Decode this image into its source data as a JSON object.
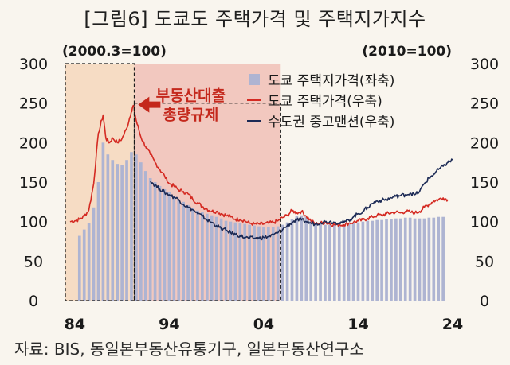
{
  "figure": {
    "title": "[그림6] 도쿄도 주택가격 및 주택지가지수",
    "source": "자료: BIS, 동일본부동산유통기구, 일본부동산연구소"
  },
  "chart_data": {
    "type": "bar+line",
    "left_axis_note": "(2000.3=100)",
    "right_axis_note": "(2010=100)",
    "y_left": {
      "range": [
        0,
        300
      ],
      "ticks": [
        "0",
        "50",
        "100",
        "150",
        "200",
        "250",
        "300"
      ]
    },
    "y_right": {
      "range": [
        0,
        300
      ],
      "ticks": [
        "0",
        "50",
        "100",
        "150",
        "200",
        "250",
        "300"
      ]
    },
    "x": {
      "range": [
        1983,
        2024
      ],
      "ticks": [
        "84",
        "94",
        "04",
        "14",
        "24"
      ],
      "tick_values": [
        1984,
        1994,
        2004,
        2014,
        2024
      ]
    },
    "legend": {
      "placement": "top-right",
      "items": [
        "도쿄 주택지가격(좌축)",
        "도쿄 주택가격(우축)",
        "수도권 중고맨션(우축)"
      ]
    },
    "annotation": {
      "lines": [
        "부동산대출",
        "총량규제"
      ],
      "arrow_points_to": [
        1990.2,
        246
      ]
    },
    "shaded_regions": [
      {
        "from": 1983,
        "to": 1990.3,
        "style": "light-orange"
      },
      {
        "from": 1990.3,
        "to": 2005.8,
        "style": "light-red"
      }
    ],
    "dashed_boxes": [
      {
        "from": 1983,
        "to": 1990.3,
        "ymin": 0,
        "ymax": 300
      },
      {
        "from": 1990.3,
        "to": 2005.8,
        "ymin": 0,
        "ymax": 250
      }
    ],
    "series": [
      {
        "name": "도쿄 주택지가격(좌축)",
        "kind": "bar",
        "axis": "left",
        "color": "#aeb4d2",
        "points": [
          [
            1984.5,
            82
          ],
          [
            1985.0,
            90
          ],
          [
            1985.5,
            98
          ],
          [
            1986.0,
            118
          ],
          [
            1986.5,
            150
          ],
          [
            1987.0,
            200
          ],
          [
            1987.5,
            185
          ],
          [
            1988.0,
            178
          ],
          [
            1988.5,
            173
          ],
          [
            1989.0,
            172
          ],
          [
            1989.5,
            178
          ],
          [
            1990.0,
            188
          ],
          [
            1990.5,
            185
          ],
          [
            1991.0,
            175
          ],
          [
            1991.5,
            164
          ],
          [
            1992.0,
            155
          ],
          [
            1992.5,
            150
          ],
          [
            1993.0,
            145
          ],
          [
            1993.5,
            141
          ],
          [
            1994.0,
            137
          ],
          [
            1994.5,
            132
          ],
          [
            1995.0,
            128
          ],
          [
            1995.5,
            125
          ],
          [
            1996.0,
            121
          ],
          [
            1996.5,
            117
          ],
          [
            1997.0,
            114
          ],
          [
            1997.5,
            112
          ],
          [
            1998.0,
            110
          ],
          [
            1998.5,
            108
          ],
          [
            1999.0,
            106
          ],
          [
            1999.5,
            104
          ],
          [
            2000.0,
            101
          ],
          [
            2000.5,
            100
          ],
          [
            2001.0,
            99
          ],
          [
            2001.5,
            98
          ],
          [
            2002.0,
            97
          ],
          [
            2002.5,
            96
          ],
          [
            2003.0,
            95
          ],
          [
            2003.5,
            94
          ],
          [
            2004.0,
            93
          ],
          [
            2004.5,
            93
          ],
          [
            2005.0,
            93
          ],
          [
            2005.5,
            94
          ],
          [
            2006.0,
            96
          ],
          [
            2006.5,
            99
          ],
          [
            2007.0,
            103
          ],
          [
            2007.5,
            107
          ],
          [
            2008.0,
            108
          ],
          [
            2008.5,
            106
          ],
          [
            2009.0,
            101
          ],
          [
            2009.5,
            98
          ],
          [
            2010.0,
            97
          ],
          [
            2010.5,
            96
          ],
          [
            2011.0,
            96
          ],
          [
            2011.5,
            96
          ],
          [
            2012.0,
            96
          ],
          [
            2012.5,
            96
          ],
          [
            2013.0,
            97
          ],
          [
            2013.5,
            98
          ],
          [
            2014.0,
            99
          ],
          [
            2014.5,
            100
          ],
          [
            2015.0,
            101
          ],
          [
            2015.5,
            101
          ],
          [
            2016.0,
            102
          ],
          [
            2016.5,
            102
          ],
          [
            2017.0,
            103
          ],
          [
            2017.5,
            103
          ],
          [
            2018.0,
            104
          ],
          [
            2018.5,
            104
          ],
          [
            2019.0,
            105
          ],
          [
            2019.5,
            105
          ],
          [
            2020.0,
            104
          ],
          [
            2020.5,
            104
          ],
          [
            2021.0,
            104
          ],
          [
            2021.5,
            105
          ],
          [
            2022.0,
            105
          ],
          [
            2022.5,
            106
          ],
          [
            2023.0,
            106
          ]
        ]
      },
      {
        "name": "도쿄 주택가격(우축)",
        "kind": "line",
        "axis": "right",
        "color": "#d42a22",
        "points": [
          [
            1983.5,
            100
          ],
          [
            1984.0,
            101
          ],
          [
            1984.5,
            103
          ],
          [
            1985.0,
            107
          ],
          [
            1985.5,
            115
          ],
          [
            1986.0,
            148
          ],
          [
            1986.5,
            212
          ],
          [
            1987.0,
            235
          ],
          [
            1987.3,
            205
          ],
          [
            1987.7,
            200
          ],
          [
            1988.0,
            206
          ],
          [
            1988.5,
            200
          ],
          [
            1989.0,
            205
          ],
          [
            1989.5,
            218
          ],
          [
            1990.0,
            240
          ],
          [
            1990.2,
            247
          ],
          [
            1990.5,
            228
          ],
          [
            1991.0,
            207
          ],
          [
            1991.5,
            195
          ],
          [
            1992.0,
            185
          ],
          [
            1992.5,
            175
          ],
          [
            1993.0,
            166
          ],
          [
            1993.5,
            158
          ],
          [
            1994.0,
            148
          ],
          [
            1994.5,
            145
          ],
          [
            1995.0,
            140
          ],
          [
            1995.5,
            138
          ],
          [
            1996.0,
            135
          ],
          [
            1996.5,
            128
          ],
          [
            1997.0,
            124
          ],
          [
            1997.5,
            119
          ],
          [
            1998.0,
            116
          ],
          [
            1998.5,
            113
          ],
          [
            1999.0,
            113
          ],
          [
            1999.5,
            110
          ],
          [
            2000.0,
            108
          ],
          [
            2000.5,
            106
          ],
          [
            2001.0,
            103
          ],
          [
            2001.5,
            103
          ],
          [
            2002.0,
            101
          ],
          [
            2002.5,
            98
          ],
          [
            2003.0,
            97
          ],
          [
            2003.5,
            97
          ],
          [
            2004.0,
            97
          ],
          [
            2004.5,
            98
          ],
          [
            2005.0,
            99
          ],
          [
            2005.5,
            101
          ],
          [
            2006.0,
            105
          ],
          [
            2006.5,
            108
          ],
          [
            2007.0,
            114
          ],
          [
            2007.5,
            111
          ],
          [
            2008.0,
            113
          ],
          [
            2008.5,
            107
          ],
          [
            2009.0,
            101
          ],
          [
            2009.5,
            97
          ],
          [
            2010.0,
            98
          ],
          [
            2010.5,
            99
          ],
          [
            2011.0,
            97
          ],
          [
            2011.5,
            96
          ],
          [
            2012.0,
            96
          ],
          [
            2012.5,
            96
          ],
          [
            2013.0,
            98
          ],
          [
            2013.5,
            99
          ],
          [
            2014.0,
            101
          ],
          [
            2014.5,
            102
          ],
          [
            2015.0,
            104
          ],
          [
            2015.5,
            106
          ],
          [
            2016.0,
            108
          ],
          [
            2016.5,
            108
          ],
          [
            2017.0,
            110
          ],
          [
            2017.5,
            111
          ],
          [
            2018.0,
            112
          ],
          [
            2018.5,
            111
          ],
          [
            2019.0,
            113
          ],
          [
            2019.5,
            112
          ],
          [
            2020.0,
            111
          ],
          [
            2020.5,
            113
          ],
          [
            2021.0,
            118
          ],
          [
            2021.5,
            122
          ],
          [
            2022.0,
            126
          ],
          [
            2022.5,
            128
          ],
          [
            2023.0,
            130
          ],
          [
            2023.5,
            128
          ]
        ]
      },
      {
        "name": "수도권 중고맨션(우축)",
        "kind": "line",
        "axis": "right",
        "color": "#1c2a55",
        "points": [
          [
            1992.0,
            152
          ],
          [
            1992.5,
            146
          ],
          [
            1993.0,
            141
          ],
          [
            1993.5,
            137
          ],
          [
            1994.0,
            134
          ],
          [
            1994.5,
            131
          ],
          [
            1995.0,
            128
          ],
          [
            1995.5,
            122
          ],
          [
            1996.0,
            118
          ],
          [
            1996.5,
            115
          ],
          [
            1997.0,
            110
          ],
          [
            1997.5,
            107
          ],
          [
            1998.0,
            102
          ],
          [
            1998.5,
            99
          ],
          [
            1999.0,
            95
          ],
          [
            1999.5,
            91
          ],
          [
            2000.0,
            89
          ],
          [
            2000.5,
            86
          ],
          [
            2001.0,
            84
          ],
          [
            2001.5,
            82
          ],
          [
            2002.0,
            80
          ],
          [
            2002.5,
            79
          ],
          [
            2003.0,
            79
          ],
          [
            2003.5,
            79
          ],
          [
            2004.0,
            80
          ],
          [
            2004.5,
            81
          ],
          [
            2005.0,
            83
          ],
          [
            2005.5,
            86
          ],
          [
            2006.0,
            90
          ],
          [
            2006.5,
            95
          ],
          [
            2007.0,
            99
          ],
          [
            2007.5,
            102
          ],
          [
            2008.0,
            102
          ],
          [
            2008.5,
            100
          ],
          [
            2009.0,
            98
          ],
          [
            2009.5,
            97
          ],
          [
            2010.0,
            99
          ],
          [
            2010.5,
            100
          ],
          [
            2011.0,
            100
          ],
          [
            2011.5,
            99
          ],
          [
            2012.0,
            99
          ],
          [
            2012.5,
            99
          ],
          [
            2013.0,
            102
          ],
          [
            2013.5,
            106
          ],
          [
            2014.0,
            110
          ],
          [
            2014.5,
            113
          ],
          [
            2015.0,
            118
          ],
          [
            2015.5,
            123
          ],
          [
            2016.0,
            126
          ],
          [
            2016.5,
            127
          ],
          [
            2017.0,
            128
          ],
          [
            2017.5,
            130
          ],
          [
            2018.0,
            132
          ],
          [
            2018.5,
            133
          ],
          [
            2019.0,
            134
          ],
          [
            2019.5,
            136
          ],
          [
            2020.0,
            134
          ],
          [
            2020.5,
            138
          ],
          [
            2021.0,
            148
          ],
          [
            2021.5,
            155
          ],
          [
            2022.0,
            160
          ],
          [
            2022.5,
            166
          ],
          [
            2023.0,
            170
          ],
          [
            2023.5,
            175
          ],
          [
            2024.0,
            178
          ]
        ]
      }
    ]
  }
}
